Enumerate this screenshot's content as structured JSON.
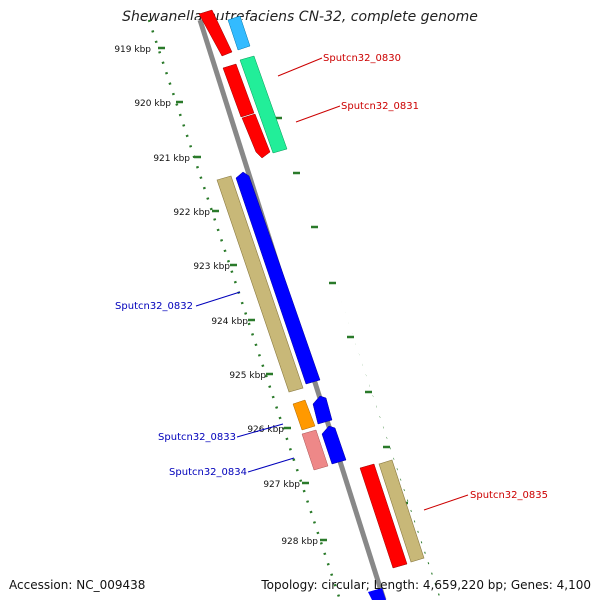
{
  "title": "Shewanella putrefaciens CN-32, complete genome",
  "accession": "Accession: NC_009438",
  "summary": "Topology: circular; Length: 4,659,220 bp; Genes: 4,100",
  "ticks": [
    "919 kbp",
    "920 kbp",
    "921 kbp",
    "922 kbp",
    "923 kbp",
    "924 kbp",
    "925 kbp",
    "926 kbp",
    "927 kbp",
    "928 kbp"
  ],
  "gene_labels": {
    "g0830": "Sputcn32_0830",
    "g0831": "Sputcn32_0831",
    "g0832": "Sputcn32_0832",
    "g0833": "Sputcn32_0833",
    "g0834": "Sputcn32_0834",
    "g0835": "Sputcn32_0835"
  },
  "colors": {
    "forward_label": "#cc0000",
    "reverse_label": "#0000bb",
    "backbone": "#888888",
    "tick": "#2a7a2a"
  }
}
